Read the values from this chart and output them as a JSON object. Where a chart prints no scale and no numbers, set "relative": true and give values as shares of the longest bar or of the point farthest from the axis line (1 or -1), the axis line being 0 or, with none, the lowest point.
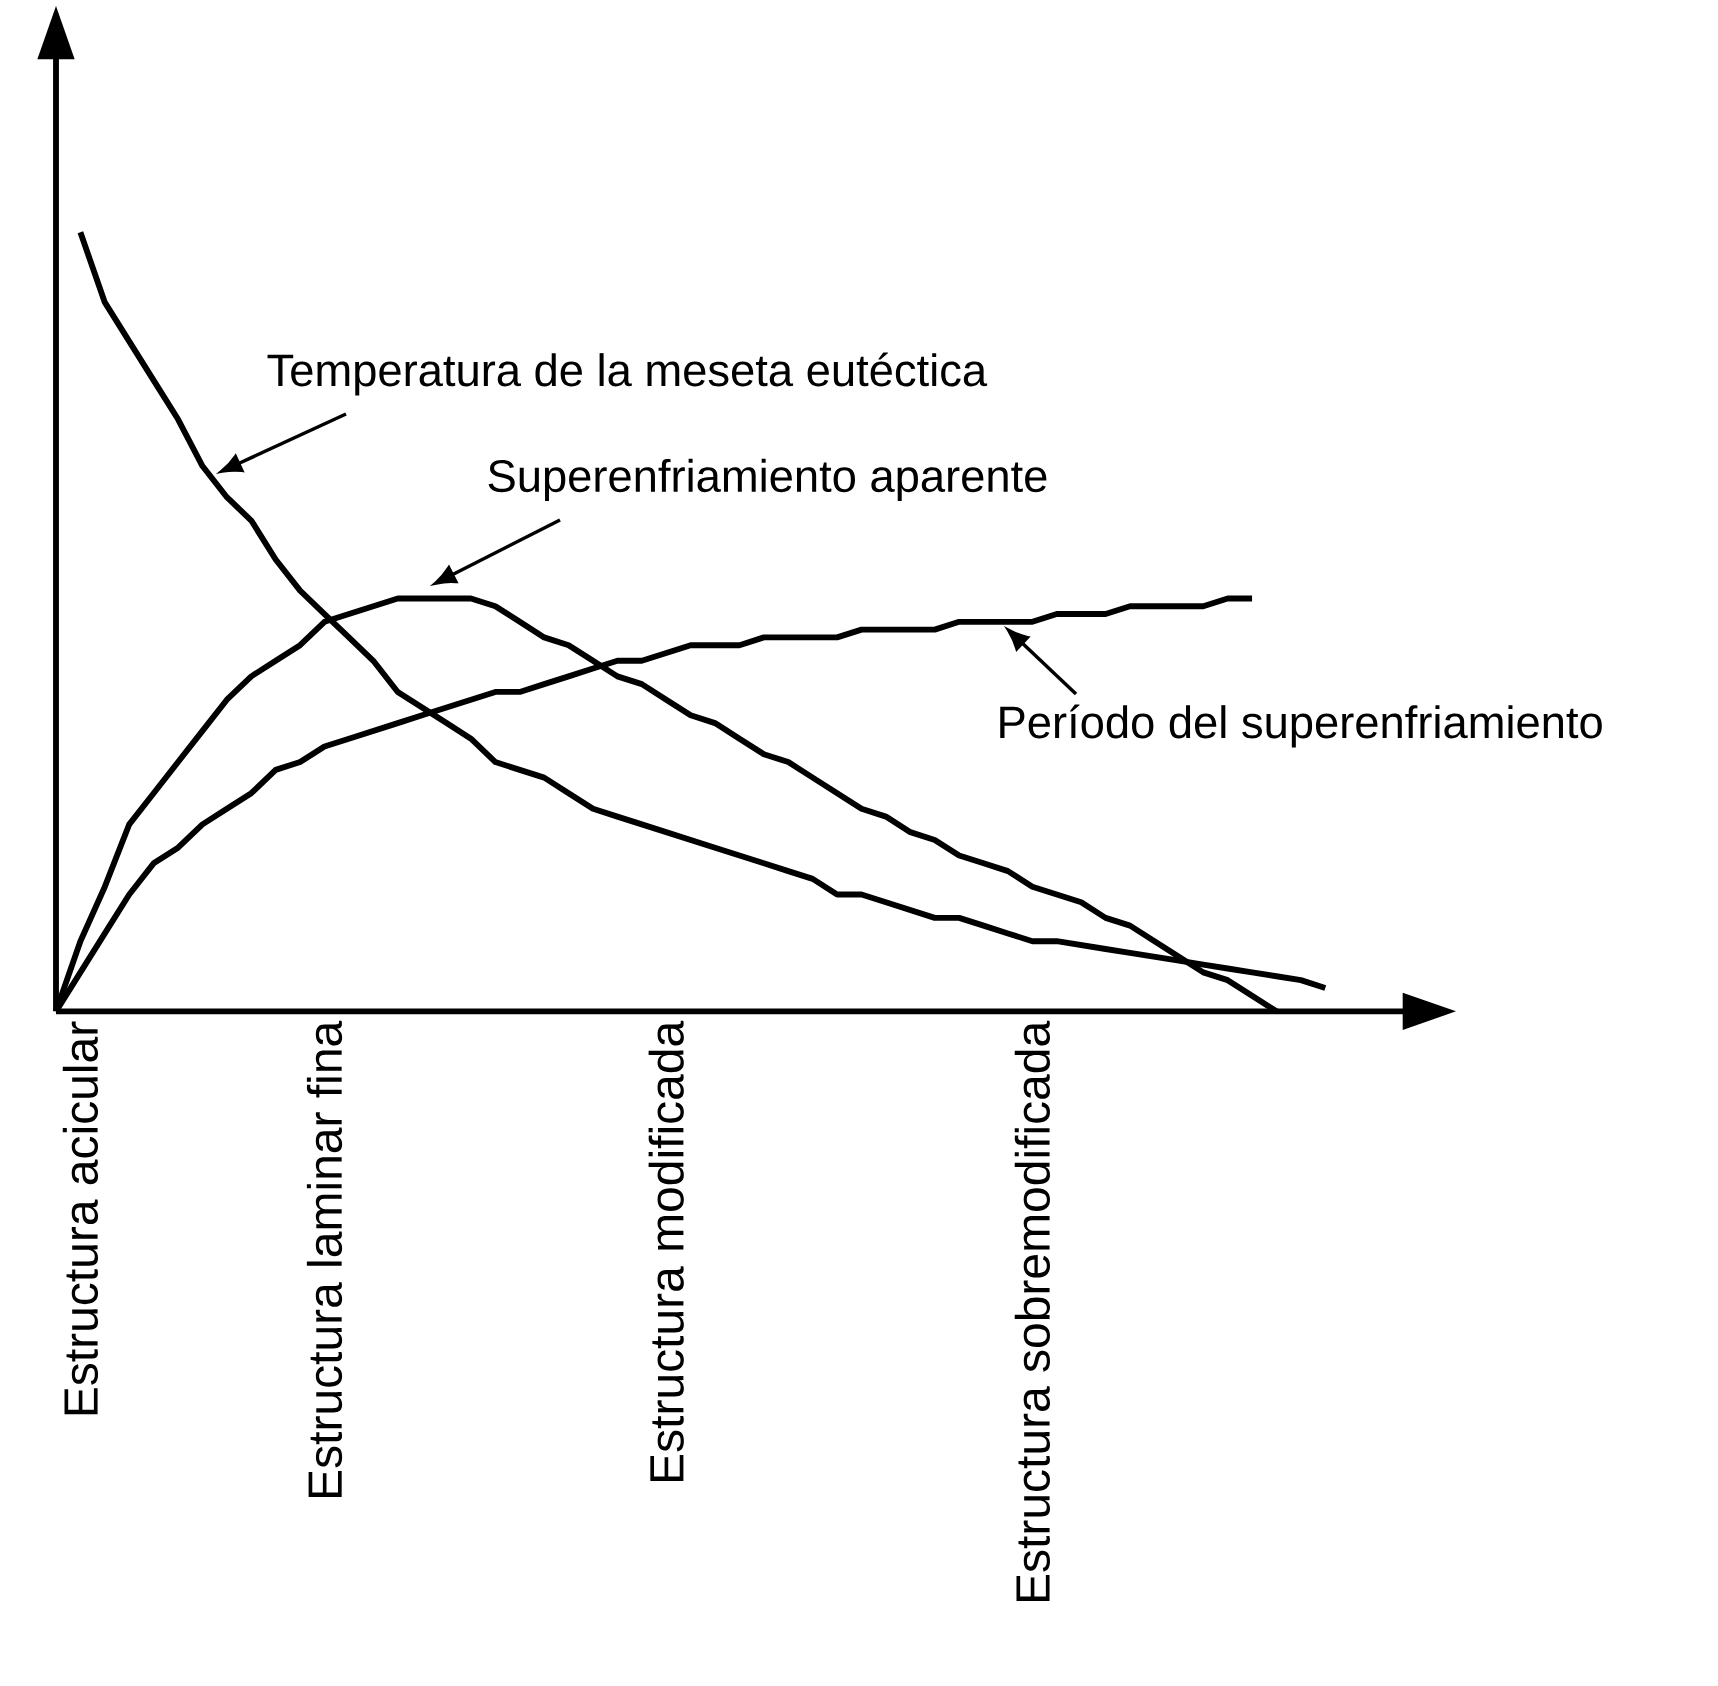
{
  "chart_data": {
    "type": "line",
    "relative": true,
    "categories": [
      null,
      "Estructura acicular",
      null,
      null,
      null,
      null,
      null,
      null,
      null,
      null,
      null,
      "Estructura laminar fina",
      null,
      null,
      null,
      null,
      null,
      null,
      null,
      null,
      null,
      null,
      null,
      null,
      null,
      "Estructura modificada",
      null,
      null,
      null,
      null,
      null,
      null,
      null,
      null,
      null,
      null,
      null,
      null,
      null,
      null,
      "Estructura sobremodificada",
      null,
      null,
      null,
      null,
      null,
      null,
      null,
      null,
      null,
      null,
      null,
      null,
      null
    ],
    "series": [
      {
        "color": "#000000",
        "values": [
          null,
          1.0,
          0.91,
          0.86,
          0.81,
          0.76,
          0.7,
          0.66,
          0.63,
          0.58,
          0.54,
          0.51,
          0.48,
          0.45,
          0.41,
          0.39,
          0.37,
          0.35,
          0.32,
          0.31,
          0.3,
          0.28,
          0.26,
          0.25,
          0.24,
          0.23,
          0.22,
          0.21,
          0.2,
          0.19,
          0.18,
          0.17,
          0.15,
          0.15,
          0.14,
          0.13,
          0.12,
          0.12,
          0.11,
          0.1,
          0.09,
          0.09,
          0.085,
          0.08,
          0.075,
          0.07,
          0.065,
          0.06,
          0.055,
          0.05,
          0.045,
          0.04,
          0.03,
          null
        ]
      },
      {
        "color": "#000000",
        "values": [
          0,
          0.09,
          0.16,
          0.24,
          0.28,
          0.32,
          0.36,
          0.4,
          0.43,
          0.45,
          0.47,
          0.5,
          0.51,
          0.52,
          0.53,
          0.53,
          0.53,
          0.53,
          0.52,
          0.5,
          0.48,
          0.47,
          0.45,
          0.43,
          0.42,
          0.4,
          0.38,
          0.37,
          0.35,
          0.33,
          0.32,
          0.3,
          0.28,
          0.26,
          0.25,
          0.23,
          0.22,
          0.2,
          0.19,
          0.18,
          0.16,
          0.15,
          0.14,
          0.12,
          0.11,
          0.09,
          0.07,
          0.05,
          0.04,
          0.02,
          0,
          null,
          null,
          null
        ]
      },
      {
        "color": "#000000",
        "values": [
          0,
          0.05,
          0.1,
          0.15,
          0.19,
          0.21,
          0.24,
          0.26,
          0.28,
          0.31,
          0.32,
          0.34,
          0.35,
          0.36,
          0.37,
          0.38,
          0.39,
          0.4,
          0.41,
          0.41,
          0.42,
          0.43,
          0.44,
          0.45,
          0.45,
          0.46,
          0.47,
          0.47,
          0.47,
          0.48,
          0.48,
          0.48,
          0.48,
          0.49,
          0.49,
          0.49,
          0.49,
          0.5,
          0.5,
          0.5,
          0.5,
          0.51,
          0.51,
          0.51,
          0.52,
          0.52,
          0.52,
          0.52,
          0.53,
          0.53,
          null,
          null,
          null,
          null
        ]
      }
    ],
    "annotations": [
      "Temperatura de la meseta eutéctica",
      "Superenfriamiento aparente",
      "Período del superenfriamiento"
    ],
    "marker": "none",
    "line_style": "solid",
    "grid": false
  }
}
